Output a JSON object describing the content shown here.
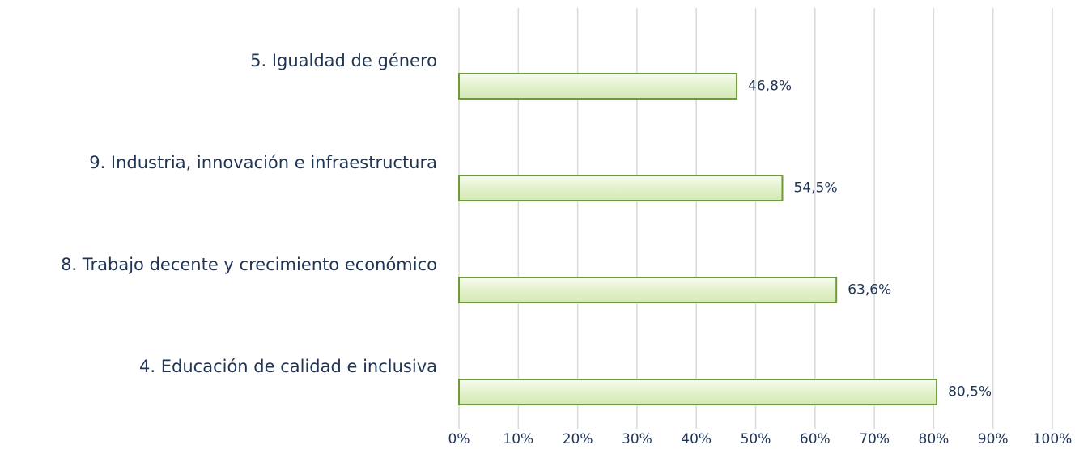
{
  "chart_data": {
    "type": "hbar",
    "categories": [
      "5. Igualdad de género",
      "9. Industria, innovación e infraestructura",
      "8. Trabajo decente y crecimiento económico",
      "4. Educación de calidad e inclusiva"
    ],
    "values": [
      46.8,
      54.5,
      63.6,
      80.5
    ],
    "value_labels": [
      "46,8%",
      "54,5%",
      "63,6%",
      "80,5%"
    ],
    "color": "#6e9a3a",
    "xlim": [
      0,
      100
    ],
    "xticks": [
      {
        "value": 0,
        "label": "0%"
      },
      {
        "value": 10,
        "label": "10%"
      },
      {
        "value": 20,
        "label": "20%"
      },
      {
        "value": 30,
        "label": "30%"
      },
      {
        "value": 40,
        "label": "40%"
      },
      {
        "value": 50,
        "label": "50%"
      },
      {
        "value": 60,
        "label": "60%"
      },
      {
        "value": 70,
        "label": "70%"
      },
      {
        "value": 80,
        "label": "80%"
      },
      {
        "value": 90,
        "label": "90%"
      },
      {
        "value": 100,
        "label": "100%"
      }
    ],
    "grid": true
  }
}
